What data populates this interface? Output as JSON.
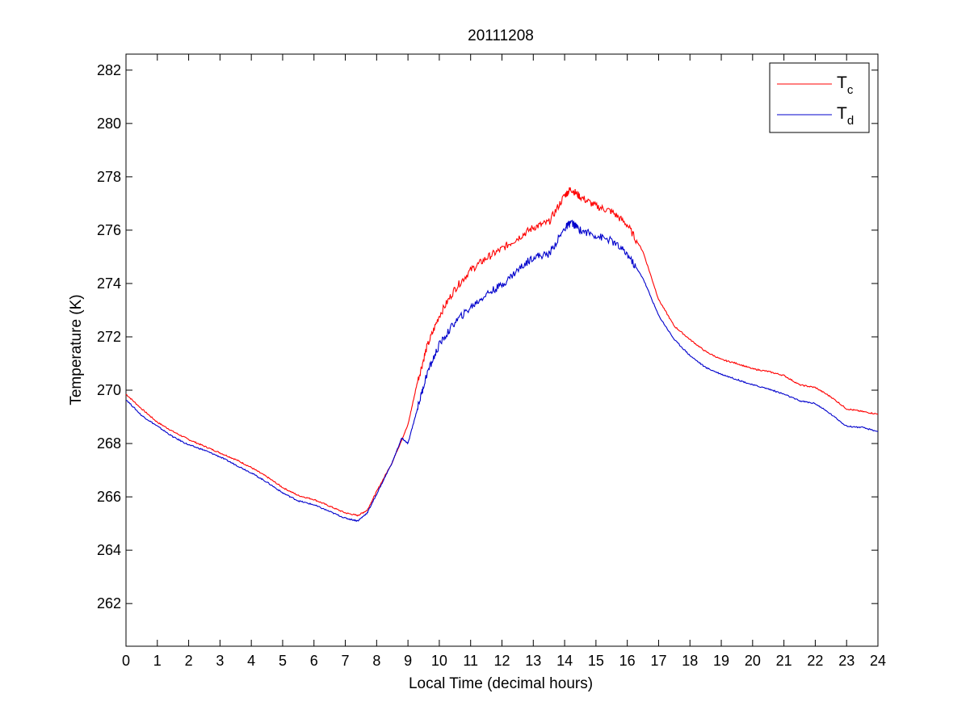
{
  "chart_data": {
    "type": "line",
    "title": "20111208",
    "xlabel": "Local Time (decimal hours)",
    "ylabel": "Temperature (K)",
    "xlim": [
      0,
      24
    ],
    "ylim": [
      260.4,
      282.6
    ],
    "xticks": [
      0,
      1,
      2,
      3,
      4,
      5,
      6,
      7,
      8,
      9,
      10,
      11,
      12,
      13,
      14,
      15,
      16,
      17,
      18,
      19,
      20,
      21,
      22,
      23,
      24
    ],
    "yticks": [
      262,
      264,
      266,
      268,
      270,
      272,
      274,
      276,
      278,
      280,
      282
    ],
    "grid": false,
    "legend_position": "top-right",
    "series": [
      {
        "name": "T",
        "name_subscript": "c",
        "color": "#ff0000",
        "points": [
          [
            0,
            269.85
          ],
          [
            0.5,
            269.3
          ],
          [
            1,
            268.8
          ],
          [
            1.5,
            268.45
          ],
          [
            2,
            268.15
          ],
          [
            2.5,
            267.9
          ],
          [
            3,
            267.65
          ],
          [
            3.5,
            267.4
          ],
          [
            4,
            267.1
          ],
          [
            4.5,
            266.75
          ],
          [
            5,
            266.35
          ],
          [
            5.5,
            266.05
          ],
          [
            6,
            265.9
          ],
          [
            6.5,
            265.65
          ],
          [
            7,
            265.4
          ],
          [
            7.4,
            265.3
          ],
          [
            7.7,
            265.5
          ],
          [
            8,
            266.2
          ],
          [
            8.5,
            267.3
          ],
          [
            9,
            268.7
          ],
          [
            9.3,
            270.3
          ],
          [
            9.6,
            271.6
          ],
          [
            10,
            272.8
          ],
          [
            10.5,
            273.8
          ],
          [
            11,
            274.5
          ],
          [
            11.5,
            274.95
          ],
          [
            12,
            275.3
          ],
          [
            12.5,
            275.7
          ],
          [
            13,
            276.1
          ],
          [
            13.5,
            276.3
          ],
          [
            14,
            277.3
          ],
          [
            14.2,
            277.55
          ],
          [
            14.5,
            277.25
          ],
          [
            15,
            276.9
          ],
          [
            15.5,
            276.7
          ],
          [
            16,
            276.2
          ],
          [
            16.5,
            275.2
          ],
          [
            17,
            273.4
          ],
          [
            17.5,
            272.4
          ],
          [
            18,
            271.9
          ],
          [
            18.5,
            271.45
          ],
          [
            19,
            271.15
          ],
          [
            19.5,
            271.0
          ],
          [
            20,
            270.8
          ],
          [
            20.5,
            270.7
          ],
          [
            21,
            270.55
          ],
          [
            21.5,
            270.2
          ],
          [
            22,
            270.1
          ],
          [
            22.5,
            269.75
          ],
          [
            23,
            269.3
          ],
          [
            23.5,
            269.2
          ],
          [
            24,
            269.1
          ]
        ]
      },
      {
        "name": "T",
        "name_subscript": "d",
        "color": "#0000cc",
        "points": [
          [
            0,
            269.65
          ],
          [
            0.5,
            269.05
          ],
          [
            1,
            268.65
          ],
          [
            1.5,
            268.25
          ],
          [
            2,
            267.95
          ],
          [
            2.5,
            267.75
          ],
          [
            3,
            267.5
          ],
          [
            3.5,
            267.2
          ],
          [
            4,
            266.9
          ],
          [
            4.5,
            266.55
          ],
          [
            5,
            266.15
          ],
          [
            5.5,
            265.85
          ],
          [
            6,
            265.7
          ],
          [
            6.5,
            265.45
          ],
          [
            7,
            265.2
          ],
          [
            7.4,
            265.1
          ],
          [
            7.7,
            265.4
          ],
          [
            8,
            266.1
          ],
          [
            8.5,
            267.3
          ],
          [
            8.8,
            268.2
          ],
          [
            9,
            268.0
          ],
          [
            9.3,
            269.3
          ],
          [
            9.6,
            270.6
          ],
          [
            10,
            271.7
          ],
          [
            10.5,
            272.55
          ],
          [
            11,
            273.1
          ],
          [
            11.5,
            273.6
          ],
          [
            12,
            273.95
          ],
          [
            12.5,
            274.5
          ],
          [
            13,
            275.0
          ],
          [
            13.5,
            275.1
          ],
          [
            14,
            276.05
          ],
          [
            14.2,
            276.3
          ],
          [
            14.5,
            276.0
          ],
          [
            15,
            275.8
          ],
          [
            15.5,
            275.6
          ],
          [
            16,
            275.1
          ],
          [
            16.5,
            274.2
          ],
          [
            17,
            272.8
          ],
          [
            17.5,
            271.9
          ],
          [
            18,
            271.3
          ],
          [
            18.5,
            270.85
          ],
          [
            19,
            270.6
          ],
          [
            19.5,
            270.4
          ],
          [
            20,
            270.2
          ],
          [
            20.5,
            270.05
          ],
          [
            21,
            269.85
          ],
          [
            21.5,
            269.6
          ],
          [
            22,
            269.5
          ],
          [
            22.5,
            269.1
          ],
          [
            23,
            268.65
          ],
          [
            23.5,
            268.6
          ],
          [
            24,
            268.45
          ]
        ]
      }
    ]
  }
}
